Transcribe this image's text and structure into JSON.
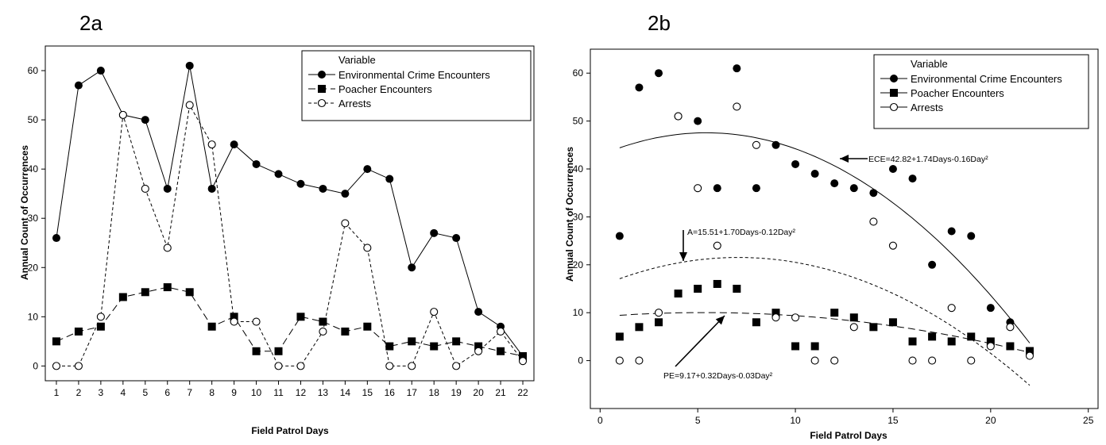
{
  "chart_data": [
    {
      "panel_label": "2a",
      "type": "line",
      "xlabel": "Field Patrol Days",
      "ylabel": "Annual Count of Occurrences",
      "x": [
        1,
        2,
        3,
        4,
        5,
        6,
        7,
        8,
        9,
        10,
        11,
        12,
        13,
        14,
        15,
        16,
        17,
        18,
        19,
        20,
        21,
        22
      ],
      "xticks": [
        1,
        2,
        3,
        4,
        5,
        6,
        7,
        8,
        9,
        10,
        11,
        12,
        13,
        14,
        15,
        16,
        17,
        18,
        19,
        20,
        21,
        22
      ],
      "yticks": [
        0,
        10,
        20,
        30,
        40,
        50,
        60
      ],
      "xlim": [
        0.5,
        22.5
      ],
      "ylim": [
        -3,
        65
      ],
      "grid": false,
      "legend": {
        "title": "Variable",
        "position": "top-right"
      },
      "series": [
        {
          "name": "Environmental Crime Encounters",
          "marker": "filled-circle",
          "line": "solid",
          "values": [
            26,
            57,
            60,
            51,
            50,
            36,
            61,
            36,
            45,
            41,
            39,
            37,
            36,
            35,
            40,
            38,
            20,
            27,
            26,
            11,
            8,
            2
          ]
        },
        {
          "name": "Poacher Encounters",
          "marker": "filled-square",
          "line": "long-dash",
          "values": [
            5,
            7,
            8,
            14,
            15,
            16,
            15,
            8,
            10,
            3,
            3,
            10,
            9,
            7,
            8,
            4,
            5,
            4,
            5,
            4,
            3,
            2
          ]
        },
        {
          "name": "Arrests",
          "marker": "open-circle",
          "line": "short-dash",
          "values": [
            0,
            0,
            10,
            51,
            36,
            24,
            53,
            45,
            9,
            9,
            0,
            0,
            7,
            29,
            24,
            0,
            0,
            11,
            0,
            3,
            7,
            1
          ]
        }
      ]
    },
    {
      "panel_label": "2b",
      "type": "scatter",
      "xlabel": "Field Patrol Days",
      "ylabel": "Annual Count of Occurrences",
      "x": [
        1,
        2,
        3,
        4,
        5,
        6,
        7,
        8,
        9,
        10,
        11,
        12,
        13,
        14,
        15,
        16,
        17,
        18,
        19,
        20,
        21,
        22
      ],
      "xticks": [
        0,
        5,
        10,
        15,
        20,
        25
      ],
      "yticks": [
        0,
        10,
        20,
        30,
        40,
        50,
        60
      ],
      "xlim": [
        -0.5,
        25.5
      ],
      "ylim": [
        -10,
        65
      ],
      "grid": false,
      "legend": {
        "title": "Variable",
        "position": "top-right"
      },
      "series": [
        {
          "name": "Environmental Crime Encounters",
          "marker": "filled-circle",
          "values": [
            26,
            57,
            60,
            51,
            50,
            36,
            61,
            36,
            45,
            41,
            39,
            37,
            36,
            35,
            40,
            38,
            20,
            27,
            26,
            11,
            8,
            2
          ]
        },
        {
          "name": "Poacher Encounters",
          "marker": "filled-square",
          "values": [
            5,
            7,
            8,
            14,
            15,
            16,
            15,
            8,
            10,
            3,
            3,
            10,
            9,
            7,
            8,
            4,
            5,
            4,
            5,
            4,
            3,
            2
          ]
        },
        {
          "name": "Arrests",
          "marker": "open-circle",
          "values": [
            0,
            0,
            10,
            51,
            36,
            24,
            53,
            45,
            9,
            9,
            0,
            0,
            7,
            29,
            24,
            0,
            0,
            11,
            0,
            3,
            7,
            1
          ]
        }
      ],
      "fits": [
        {
          "series": "Environmental Crime Encounters",
          "label": "ECE=42.82+1.74Days-0.16Day²",
          "line": "solid",
          "a": 42.82,
          "b": 1.74,
          "c": -0.16,
          "x_range": [
            1,
            22
          ]
        },
        {
          "series": "Arrests",
          "label": "A=15.51+1.70Days-0.12Day²",
          "line": "short-dash",
          "a": 15.51,
          "b": 1.7,
          "c": -0.12,
          "x_range": [
            1,
            22
          ]
        },
        {
          "series": "Poacher Encounters",
          "label": "PE=9.17+0.32Days-0.03Day²",
          "line": "long-dash",
          "a": 9.17,
          "b": 0.32,
          "c": -0.03,
          "x_range": [
            1,
            22
          ]
        }
      ]
    }
  ]
}
